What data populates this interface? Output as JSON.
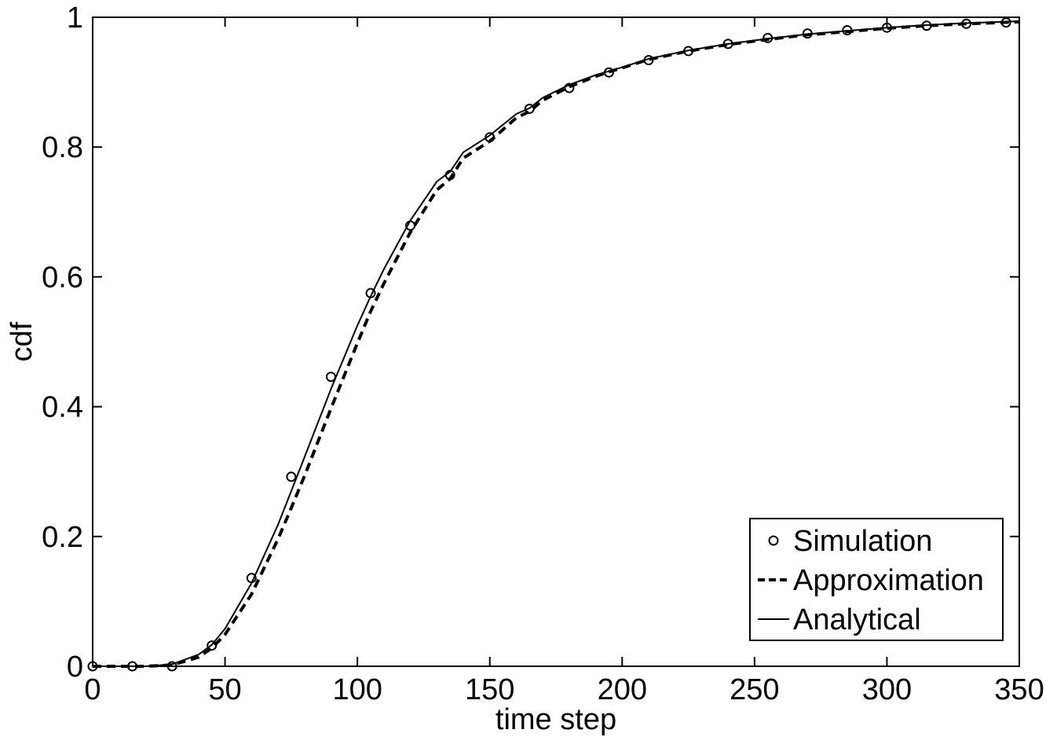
{
  "chart_data": {
    "type": "line",
    "title": "",
    "xlabel": "time step",
    "ylabel": "cdf",
    "xlim": [
      0,
      350
    ],
    "ylim": [
      0,
      1
    ],
    "xticks": [
      "0",
      "50",
      "100",
      "150",
      "200",
      "250",
      "300",
      "350"
    ],
    "yticks": [
      "0",
      "0.2",
      "0.4",
      "0.6",
      "0.8",
      "1"
    ],
    "grid": false,
    "legend_position": "bottom-right",
    "series": [
      {
        "name": "Simulation",
        "style": "markers",
        "marker": "circle",
        "color": "#000000",
        "x": [
          0,
          15,
          30,
          45,
          60,
          75,
          90,
          105,
          120,
          135,
          150,
          165,
          180,
          195,
          210,
          225,
          240,
          255,
          270,
          285,
          300,
          315,
          330,
          345
        ],
        "y": [
          0,
          0,
          0,
          0.032,
          0.136,
          0.292,
          0.446,
          0.575,
          0.679,
          0.757,
          0.815,
          0.859,
          0.891,
          0.915,
          0.934,
          0.948,
          0.959,
          0.968,
          0.975,
          0.98,
          0.984,
          0.987,
          0.99,
          0.992
        ]
      },
      {
        "name": "Approximation",
        "style": "dashed",
        "color": "#000000",
        "x": [
          0,
          20,
          30,
          40,
          45,
          50,
          60,
          70,
          75,
          80,
          90,
          100,
          105,
          110,
          120,
          130,
          135,
          140,
          150,
          160,
          165,
          170,
          180,
          190,
          195,
          200,
          210,
          225,
          240,
          255,
          270,
          285,
          300,
          315,
          330,
          350
        ],
        "y": [
          0,
          0,
          0.002,
          0.014,
          0.028,
          0.049,
          0.111,
          0.196,
          0.244,
          0.293,
          0.397,
          0.498,
          0.547,
          0.59,
          0.669,
          0.734,
          0.751,
          0.783,
          0.809,
          0.845,
          0.855,
          0.872,
          0.893,
          0.909,
          0.916,
          0.922,
          0.935,
          0.948,
          0.958,
          0.966,
          0.973,
          0.978,
          0.983,
          0.987,
          0.99,
          0.993
        ]
      },
      {
        "name": "Analytical",
        "style": "solid",
        "color": "#000000",
        "x": [
          0,
          20,
          30,
          40,
          45,
          50,
          60,
          70,
          75,
          80,
          90,
          100,
          105,
          110,
          120,
          130,
          135,
          140,
          150,
          160,
          165,
          170,
          180,
          190,
          195,
          200,
          210,
          225,
          240,
          255,
          270,
          285,
          300,
          315,
          330,
          350
        ],
        "y": [
          0,
          0,
          0.003,
          0.018,
          0.033,
          0.058,
          0.128,
          0.218,
          0.27,
          0.322,
          0.427,
          0.525,
          0.57,
          0.612,
          0.687,
          0.747,
          0.762,
          0.792,
          0.818,
          0.851,
          0.86,
          0.876,
          0.896,
          0.911,
          0.917,
          0.923,
          0.936,
          0.949,
          0.959,
          0.967,
          0.974,
          0.979,
          0.984,
          0.988,
          0.991,
          0.994
        ]
      }
    ]
  }
}
